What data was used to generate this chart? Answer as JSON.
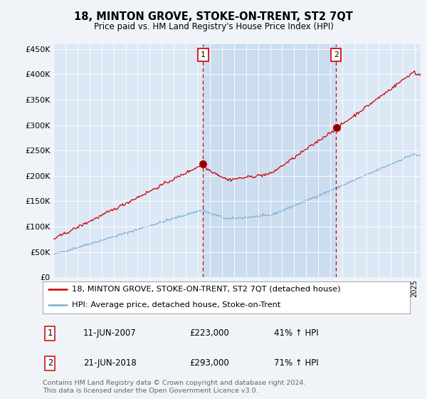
{
  "title": "18, MINTON GROVE, STOKE-ON-TRENT, ST2 7QT",
  "subtitle": "Price paid vs. HM Land Registry's House Price Index (HPI)",
  "bg_color": "#f0f4f8",
  "plot_bg_color": "#dce8f5",
  "plot_bg_between": "#ccddf0",
  "red_color": "#cc0000",
  "blue_color": "#7aaed6",
  "ylim": [
    0,
    460000
  ],
  "yticks": [
    0,
    50000,
    100000,
    150000,
    200000,
    250000,
    300000,
    350000,
    400000,
    450000
  ],
  "legend_label_red": "18, MINTON GROVE, STOKE-ON-TRENT, ST2 7QT (detached house)",
  "legend_label_blue": "HPI: Average price, detached house, Stoke-on-Trent",
  "annotation1_date": "11-JUN-2007",
  "annotation1_price": "£223,000",
  "annotation1_hpi": "41% ↑ HPI",
  "annotation1_year": 2007.44,
  "annotation2_date": "21-JUN-2018",
  "annotation2_price": "£293,000",
  "annotation2_hpi": "71% ↑ HPI",
  "annotation2_year": 2018.47,
  "footer": "Contains HM Land Registry data © Crown copyright and database right 2024.\nThis data is licensed under the Open Government Licence v3.0.",
  "xmin": 1995.0,
  "xmax": 2025.5
}
